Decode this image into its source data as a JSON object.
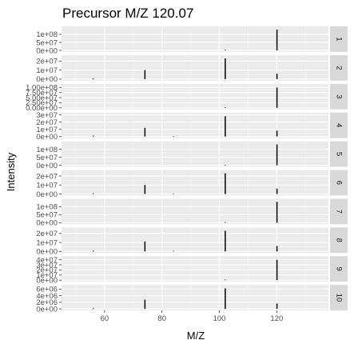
{
  "chart_data": {
    "type": "bar",
    "title": "Precursor M/Z 120.07",
    "xlabel": "M/Z",
    "ylabel": "Intensity",
    "xlim": [
      45,
      138
    ],
    "x_ticks": [
      60,
      80,
      100,
      120
    ],
    "x_tick_labels": [
      "60",
      "80",
      "100",
      "120"
    ],
    "grid": true,
    "facet_strip_position": "right",
    "panels": [
      {
        "label": "1",
        "ylim": [
          0,
          140000000.0
        ],
        "y_ticks": [
          0,
          50000000.0,
          100000000.0
        ],
        "y_tick_labels": [
          "0e+00",
          "5e+07",
          "1e+08"
        ],
        "peaks": [
          {
            "mz": 102.05,
            "intensity": 1500000.0
          },
          {
            "mz": 120.07,
            "intensity": 130000000.0
          }
        ]
      },
      {
        "label": "2",
        "ylim": [
          0,
          25000000.0
        ],
        "y_ticks": [
          0,
          10000000.0,
          20000000.0
        ],
        "y_tick_labels": [
          "0e+00",
          "1e+07",
          "2e+07"
        ],
        "peaks": [
          {
            "mz": 56.05,
            "intensity": 800000.0
          },
          {
            "mz": 74.06,
            "intensity": 10000000.0
          },
          {
            "mz": 102.05,
            "intensity": 23000000.0
          },
          {
            "mz": 120.07,
            "intensity": 6000000.0
          }
        ]
      },
      {
        "label": "3",
        "ylim": [
          0,
          110000000.0
        ],
        "y_ticks": [
          0,
          25000000.0,
          50000000.0,
          75000000.0,
          100000000.0
        ],
        "y_tick_labels": [
          "0.00e+00",
          "2.50e+07",
          "5.00e+07",
          "7.50e+07",
          "1.00e+08"
        ],
        "peaks": [
          {
            "mz": 102.05,
            "intensity": 1200000.0
          },
          {
            "mz": 120.07,
            "intensity": 100000000.0
          }
        ]
      },
      {
        "label": "4",
        "ylim": [
          0,
          31000000.0
        ],
        "y_ticks": [
          0,
          10000000.0,
          20000000.0,
          30000000.0
        ],
        "y_tick_labels": [
          "0e+00",
          "1e+07",
          "2e+07",
          "3e+07"
        ],
        "peaks": [
          {
            "mz": 56.05,
            "intensity": 1200000.0
          },
          {
            "mz": 74.06,
            "intensity": 12000000.0
          },
          {
            "mz": 84.04,
            "intensity": 400000.0
          },
          {
            "mz": 102.05,
            "intensity": 28000000.0
          },
          {
            "mz": 120.07,
            "intensity": 8000000.0
          }
        ]
      },
      {
        "label": "5",
        "ylim": [
          0,
          140000000.0
        ],
        "y_ticks": [
          0,
          50000000.0,
          100000000.0
        ],
        "y_tick_labels": [
          "0e+00",
          "5e+07",
          "1e+08"
        ],
        "peaks": [
          {
            "mz": 102.05,
            "intensity": 1500000.0
          },
          {
            "mz": 120.07,
            "intensity": 130000000.0
          }
        ]
      },
      {
        "label": "6",
        "ylim": [
          0,
          25000000.0
        ],
        "y_ticks": [
          0,
          10000000.0,
          20000000.0
        ],
        "y_tick_labels": [
          "0e+00",
          "1e+07",
          "2e+07"
        ],
        "peaks": [
          {
            "mz": 56.05,
            "intensity": 800000.0
          },
          {
            "mz": 74.06,
            "intensity": 10000000.0
          },
          {
            "mz": 84.04,
            "intensity": 400000.0
          },
          {
            "mz": 102.05,
            "intensity": 23000000.0
          },
          {
            "mz": 120.07,
            "intensity": 6000000.0
          }
        ]
      },
      {
        "label": "7",
        "ylim": [
          0,
          140000000.0
        ],
        "y_ticks": [
          0,
          50000000.0,
          100000000.0
        ],
        "y_tick_labels": [
          "0e+00",
          "5e+07",
          "1e+08"
        ],
        "peaks": [
          {
            "mz": 102.05,
            "intensity": 1500000.0
          },
          {
            "mz": 120.07,
            "intensity": 130000000.0
          }
        ]
      },
      {
        "label": "8",
        "ylim": [
          0,
          25000000.0
        ],
        "y_ticks": [
          0,
          10000000.0,
          20000000.0
        ],
        "y_tick_labels": [
          "0e+00",
          "1e+07",
          "2e+07"
        ],
        "peaks": [
          {
            "mz": 56.05,
            "intensity": 800000.0
          },
          {
            "mz": 74.06,
            "intensity": 11000000.0
          },
          {
            "mz": 84.04,
            "intensity": 400000.0
          },
          {
            "mz": 102.05,
            "intensity": 23000000.0
          },
          {
            "mz": 120.07,
            "intensity": 6000000.0
          }
        ]
      },
      {
        "label": "9",
        "ylim": [
          0,
          44000000.0
        ],
        "y_ticks": [
          0,
          10000000.0,
          20000000.0,
          30000000.0,
          40000000.0
        ],
        "y_tick_labels": [
          "0e+00",
          "1e+07",
          "2e+07",
          "3e+07",
          "4e+07"
        ],
        "peaks": [
          {
            "mz": 102.05,
            "intensity": 600000.0
          },
          {
            "mz": 120.07,
            "intensity": 40000000.0
          }
        ]
      },
      {
        "label": "10",
        "ylim": [
          0,
          6800000.0
        ],
        "y_ticks": [
          0,
          2000000.0,
          4000000.0,
          6000000.0
        ],
        "y_tick_labels": [
          "0e+00",
          "2e+06",
          "4e+06",
          "6e+06"
        ],
        "peaks": [
          {
            "mz": 56.05,
            "intensity": 200000.0
          },
          {
            "mz": 74.06,
            "intensity": 2800000.0
          },
          {
            "mz": 102.05,
            "intensity": 6200000.0
          },
          {
            "mz": 120.07,
            "intensity": 1600000.0
          }
        ]
      }
    ]
  }
}
